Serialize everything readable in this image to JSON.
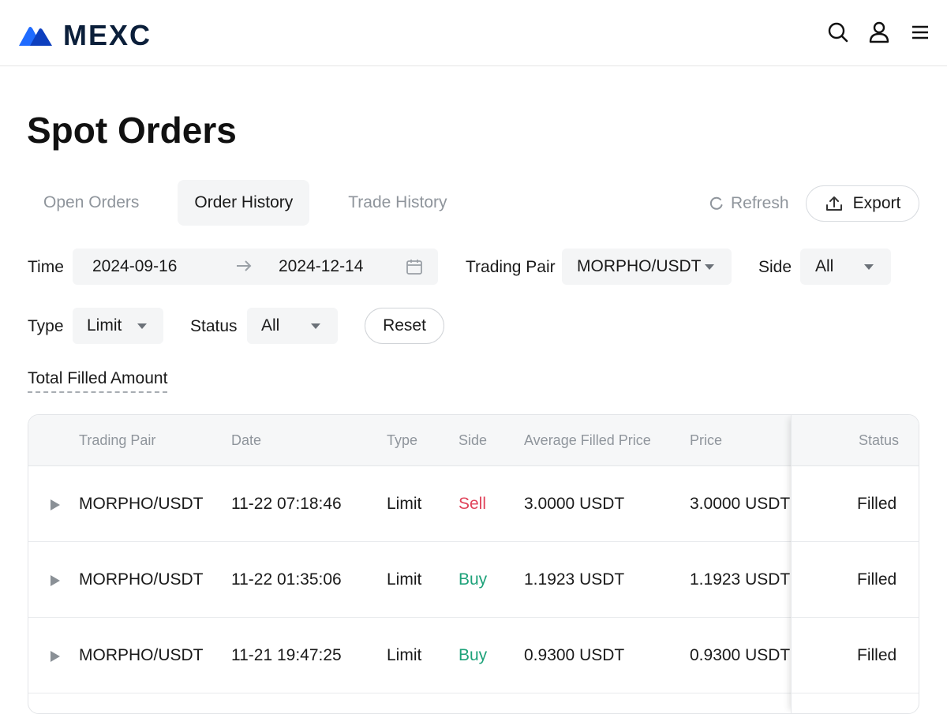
{
  "header": {
    "brand": "MEXC",
    "colors": {
      "brand": "#0b1f3a",
      "logo_primary": "#1f6bff",
      "logo_secondary": "#0d3fbf"
    },
    "icons": [
      "search-icon",
      "user-icon",
      "menu-icon"
    ]
  },
  "page": {
    "title": "Spot Orders"
  },
  "tabs": [
    {
      "label": "Open Orders",
      "active": false
    },
    {
      "label": "Order History",
      "active": true
    },
    {
      "label": "Trade History",
      "active": false
    }
  ],
  "actions": {
    "refresh_label": "Refresh",
    "export_label": "Export"
  },
  "filters": {
    "time_label": "Time",
    "start_date": "2024-09-16",
    "end_date": "2024-12-14",
    "trading_pair_label": "Trading Pair",
    "trading_pair_value": "MORPHO/USDT",
    "side_label": "Side",
    "side_value": "All",
    "type_label": "Type",
    "type_value": "Limit",
    "status_label": "Status",
    "status_value": "All",
    "reset_label": "Reset"
  },
  "total_filled_amount_label": "Total Filled Amount",
  "table": {
    "columns": [
      "Trading Pair",
      "Date",
      "Type",
      "Side",
      "Average Filled Price",
      "Price",
      "Status"
    ],
    "rows": [
      {
        "pair": "MORPHO/USDT",
        "date": "11-22 07:18:46",
        "type": "Limit",
        "side": "Sell",
        "avg_price": "3.0000 USDT",
        "price": "3.0000 USDT",
        "status": "Filled"
      },
      {
        "pair": "MORPHO/USDT",
        "date": "11-22 01:35:06",
        "type": "Limit",
        "side": "Buy",
        "avg_price": "1.1923 USDT",
        "price": "1.1923 USDT",
        "status": "Filled"
      },
      {
        "pair": "MORPHO/USDT",
        "date": "11-21 19:47:25",
        "type": "Limit",
        "side": "Buy",
        "avg_price": "0.9300 USDT",
        "price": "0.9300 USDT",
        "status": "Filled"
      }
    ],
    "colors": {
      "sell": "#e0435a",
      "buy": "#1ea27a"
    }
  }
}
